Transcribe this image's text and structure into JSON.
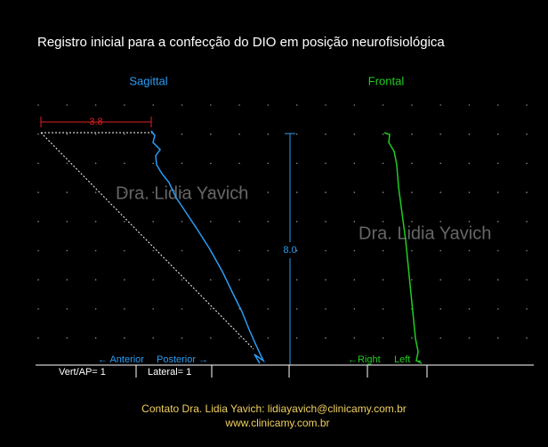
{
  "header": {
    "title": "Registro inicial para a confecção do DIO  em posição neurofisiológica"
  },
  "panels": {
    "sagittal": {
      "label": "Sagittal",
      "measure_h": "3.8",
      "left": "← Anterior",
      "right": "Posterior →"
    },
    "frontal": {
      "label": "Frontal",
      "left": "←Right",
      "right": "Left →"
    }
  },
  "measure_v": "8.0",
  "watermarks": [
    "Dra. Lidia Yavich",
    "Dra. Lidia Yavich"
  ],
  "scales": [
    "Vert/AP= 1",
    "Lateral= 1"
  ],
  "footer": {
    "contact": "Contato  Dra. Lidia Yavich:  lidiayavich@clinicamy.com.br",
    "site": "www.clinicamy.com.br"
  }
}
